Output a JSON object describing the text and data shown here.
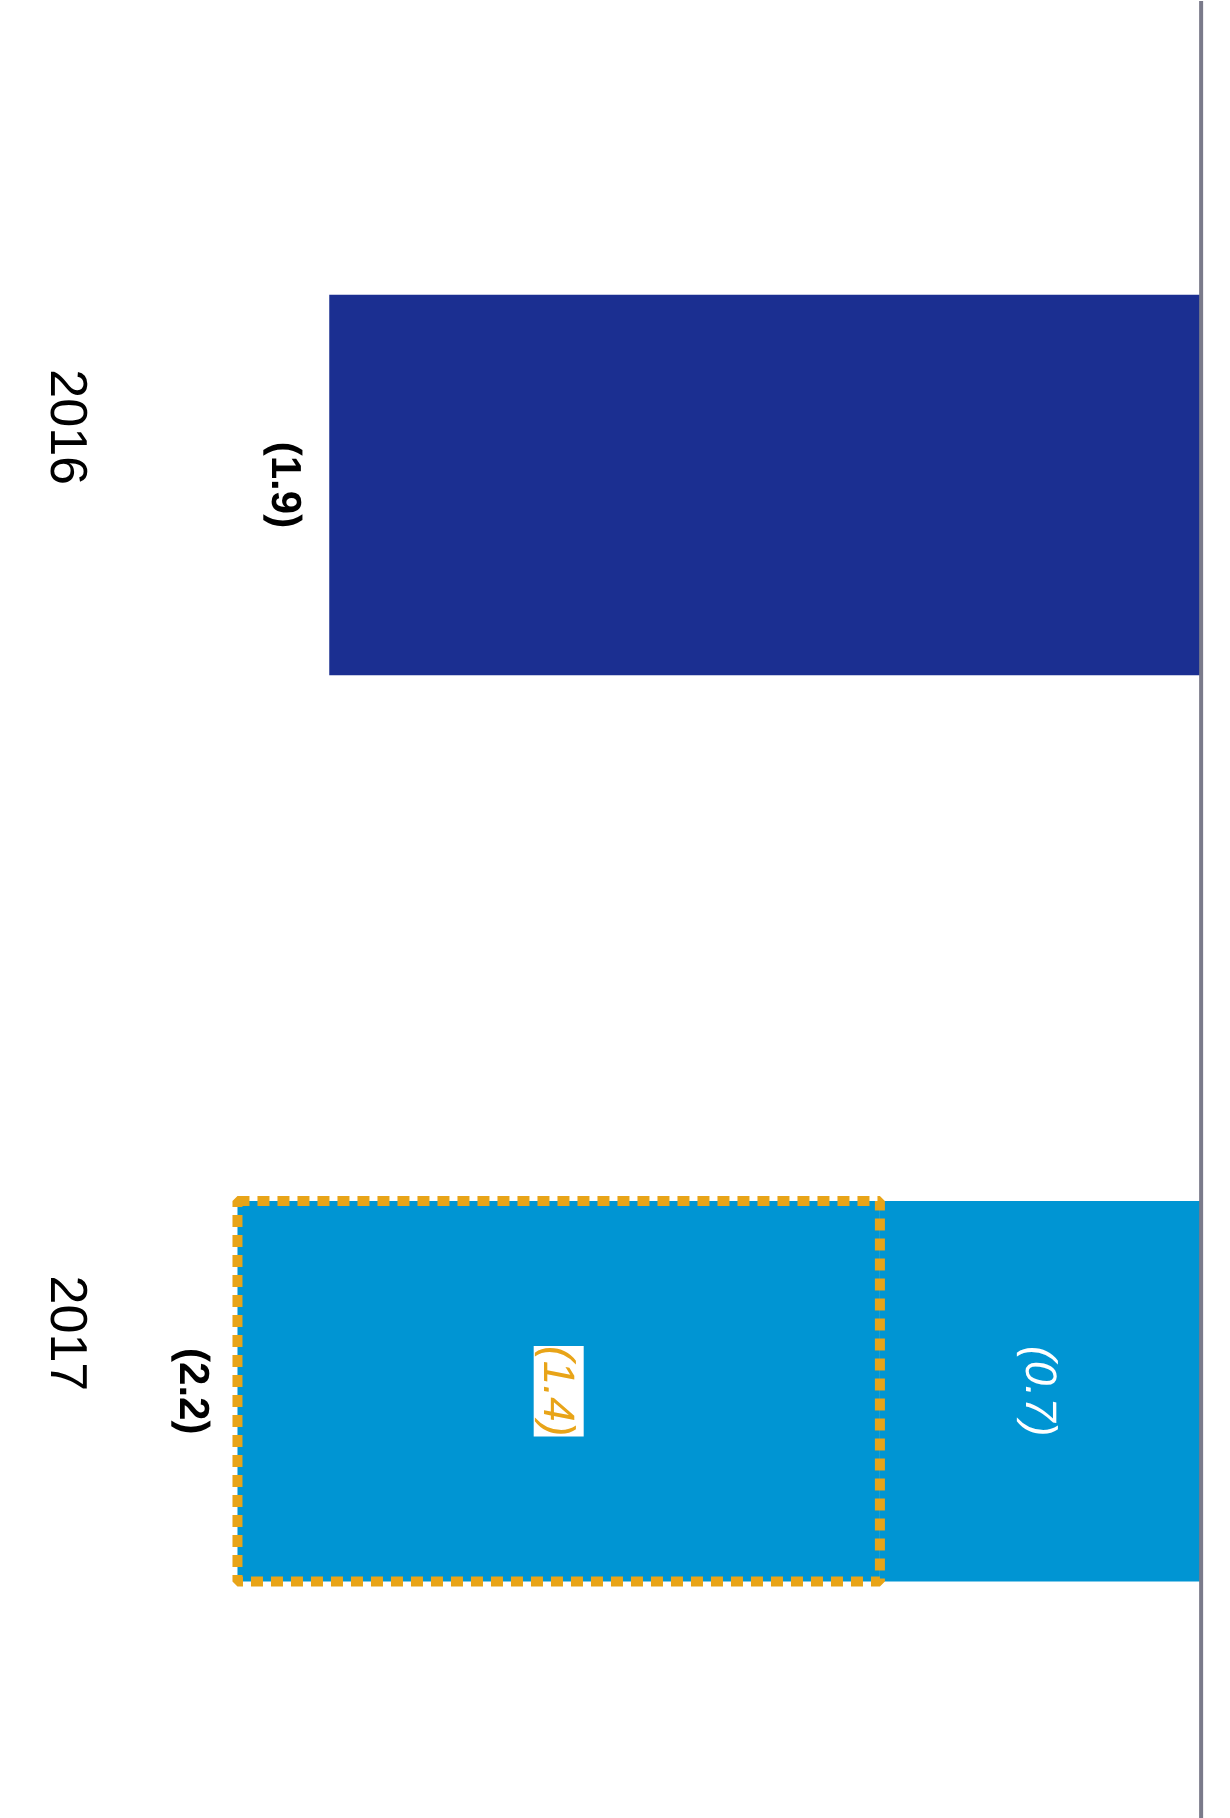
{
  "chart_data": {
    "type": "bar",
    "orientation": "horizontal",
    "stacked": true,
    "categories": [
      "2016",
      "2017"
    ],
    "tick_labels": "y",
    "grid": false,
    "series": [
      {
        "colors": [
          "#1b2f91",
          "#0095d3"
        ],
        "values": [
          -1.9,
          -0.7
        ],
        "value_labels": [
          null,
          "(0.7)"
        ]
      },
      {
        "color": "#0095d3",
        "values": [
          null,
          -1.4
        ],
        "value_labels": [
          null,
          "(1.4)"
        ],
        "line_style": "dashed"
      }
    ],
    "totals": [
      "(1.9)",
      "(2.2)"
    ]
  }
}
